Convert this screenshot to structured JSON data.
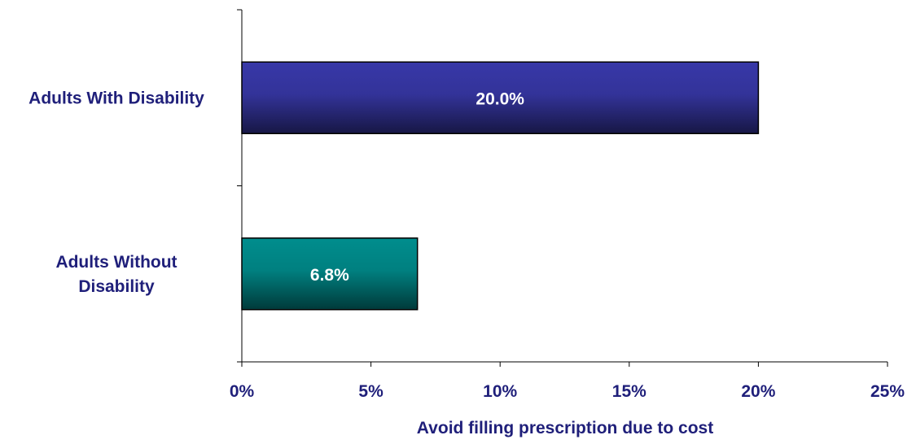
{
  "chart_data": {
    "type": "bar",
    "orientation": "horizontal",
    "categories": [
      "Adults With Disability",
      "Adults Without Disability"
    ],
    "category_lines": [
      [
        "Adults With Disability"
      ],
      [
        "Adults Without",
        "Disability"
      ]
    ],
    "values": [
      20.0,
      6.8
    ],
    "data_labels": [
      "20.0%",
      "6.8%"
    ],
    "bar_colors": [
      "#333399",
      "#008080"
    ],
    "xlabel": "Avoid filling prescription due to cost",
    "ylabel": "",
    "title": "",
    "xlim": [
      0,
      25
    ],
    "xticks": [
      0,
      5,
      10,
      15,
      20,
      25
    ],
    "xtick_labels": [
      "0%",
      "5%",
      "10%",
      "15%",
      "20%",
      "25%"
    ],
    "grid": false,
    "legend": "none"
  }
}
